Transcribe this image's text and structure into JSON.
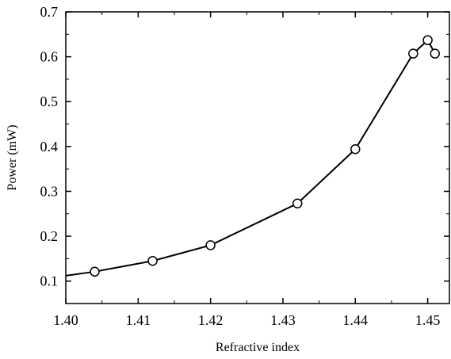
{
  "chart_data": {
    "type": "line",
    "xlabel": "Refractive index",
    "ylabel": "Power (mW)",
    "xlim": [
      1.4,
      1.453
    ],
    "ylim": [
      0.05,
      0.7
    ],
    "x_ticks": [
      "1.40",
      "1.41",
      "1.42",
      "1.43",
      "1.44",
      "1.45"
    ],
    "y_ticks": [
      "0.1",
      "0.2",
      "0.3",
      "0.4",
      "0.5",
      "0.6",
      "0.7"
    ],
    "grid": false,
    "line_start": {
      "x": 1.4,
      "y": 0.112
    },
    "series": [
      {
        "marker": "open-circle",
        "x": [
          1.404,
          1.412,
          1.42,
          1.432,
          1.44,
          1.448,
          1.45,
          1.451
        ],
        "y": [
          0.121,
          0.145,
          0.18,
          0.273,
          0.394,
          0.607,
          0.637,
          0.607
        ]
      }
    ]
  }
}
